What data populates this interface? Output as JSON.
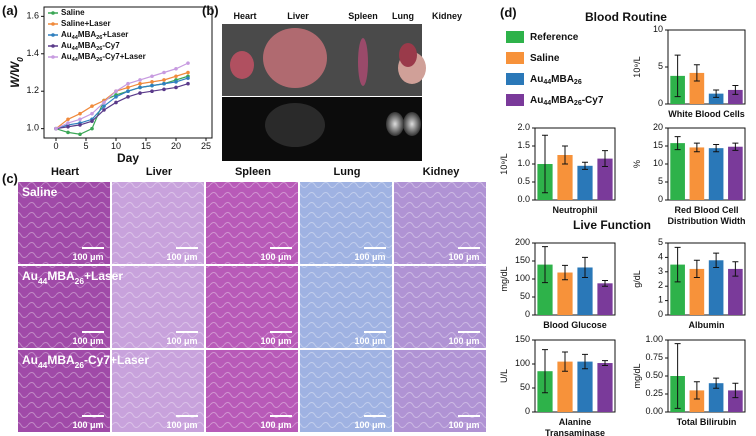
{
  "panel_labels": [
    "(a)",
    "(b)",
    "(c)",
    "(d)"
  ],
  "chart_data": [
    {
      "type": "line",
      "ylabel": "W/W0",
      "xlabel": "Day",
      "x": [
        0,
        2,
        4,
        6,
        8,
        10,
        12,
        14,
        16,
        18,
        20,
        22
      ],
      "series": [
        {
          "name": "Saline",
          "color": "#3aa655",
          "values": [
            1.0,
            0.98,
            0.97,
            1.0,
            1.15,
            1.18,
            1.2,
            1.22,
            1.23,
            1.24,
            1.26,
            1.28
          ]
        },
        {
          "name": "Saline+Laser",
          "color": "#f08a3c",
          "values": [
            1.0,
            1.05,
            1.08,
            1.12,
            1.15,
            1.2,
            1.22,
            1.24,
            1.25,
            1.26,
            1.28,
            1.3
          ]
        },
        {
          "name": "Au44MBA26+Laser",
          "color": "#2f7fbf",
          "values": [
            1.0,
            1.02,
            1.03,
            1.05,
            1.12,
            1.17,
            1.2,
            1.22,
            1.23,
            1.24,
            1.25,
            1.27
          ]
        },
        {
          "name": "Au44MBA26-Cy7",
          "color": "#5a3a8a",
          "values": [
            1.0,
            1.01,
            1.02,
            1.04,
            1.1,
            1.14,
            1.17,
            1.19,
            1.2,
            1.21,
            1.22,
            1.24
          ]
        },
        {
          "name": "Au44MBA26-Cy7+Laser",
          "color": "#c79be0",
          "values": [
            1.0,
            1.03,
            1.05,
            1.08,
            1.14,
            1.2,
            1.24,
            1.26,
            1.28,
            1.3,
            1.32,
            1.35
          ]
        }
      ],
      "xlim": [
        -2,
        26
      ],
      "xticks": [
        0,
        5,
        10,
        15,
        20,
        25
      ],
      "ylim": [
        0.95,
        1.65
      ],
      "yticks": [
        {
          "value": 1.0,
          "label": "1.0"
        },
        {
          "value": 1.2,
          "label": "1.2"
        },
        {
          "value": 1.4,
          "label": "1.4"
        },
        {
          "value": 1.6,
          "label": "1.6"
        }
      ]
    },
    {
      "type": "bar",
      "ylabel": "10⁹/L",
      "title": [
        "White Blood Cells"
      ],
      "values": [
        3.8,
        4.2,
        1.4,
        1.9
      ],
      "errors": [
        2.8,
        1.1,
        0.5,
        0.6
      ],
      "ylim": [
        0,
        10
      ],
      "yticks": [
        0,
        5,
        10
      ]
    },
    {
      "type": "bar",
      "ylabel": "10⁹/L",
      "title": [
        "Neutrophil"
      ],
      "values": [
        1.0,
        1.25,
        0.95,
        1.15
      ],
      "errors": [
        0.8,
        0.25,
        0.1,
        0.22
      ],
      "ylim": [
        0,
        2
      ],
      "yticks": [
        {
          "value": 0,
          "label": "0.0"
        },
        {
          "value": 0.5,
          "label": "0.5"
        },
        {
          "value": 1,
          "label": "1.0"
        },
        {
          "value": 1.5,
          "label": "1.5"
        },
        {
          "value": 2,
          "label": "2.0"
        }
      ]
    },
    {
      "type": "bar",
      "ylabel": "%",
      "title": [
        "Red Blood Cell",
        "Distribution Width"
      ],
      "values": [
        15.8,
        14.6,
        14.4,
        14.8
      ],
      "errors": [
        1.8,
        1.2,
        1.0,
        1.0
      ],
      "ylim": [
        0,
        20
      ],
      "yticks": [
        0,
        5,
        10,
        15,
        20
      ]
    },
    {
      "type": "bar",
      "ylabel": "mg/dL",
      "title": [
        "Blood Glucose"
      ],
      "values": [
        140,
        118,
        132,
        88
      ],
      "errors": [
        50,
        20,
        28,
        8
      ],
      "ylim": [
        0,
        200
      ],
      "yticks": [
        0,
        50,
        100,
        150,
        200
      ]
    },
    {
      "type": "bar",
      "ylabel": "g/dL",
      "title": [
        "Albumin"
      ],
      "values": [
        3.5,
        3.2,
        3.8,
        3.2
      ],
      "errors": [
        1.2,
        0.6,
        0.5,
        0.5
      ],
      "ylim": [
        0,
        5
      ],
      "yticks": [
        0,
        1,
        2,
        3,
        4,
        5
      ]
    },
    {
      "type": "bar",
      "ylabel": "U/L",
      "title": [
        "Alanine",
        "Transaminase"
      ],
      "values": [
        85,
        105,
        105,
        102
      ],
      "errors": [
        45,
        20,
        15,
        5
      ],
      "ylim": [
        0,
        150
      ],
      "yticks": [
        0,
        50,
        100,
        150
      ]
    },
    {
      "type": "bar",
      "ylabel": "mg/dL",
      "title": [
        "Total Bilirubin"
      ],
      "values": [
        0.5,
        0.3,
        0.4,
        0.3
      ],
      "errors": [
        0.45,
        0.12,
        0.07,
        0.1
      ],
      "ylim": [
        0,
        1
      ],
      "yticks": [
        {
          "value": 0,
          "label": "0.00"
        },
        {
          "value": 0.25,
          "label": "0.25"
        },
        {
          "value": 0.5,
          "label": "0.50"
        },
        {
          "value": 0.75,
          "label": "0.75"
        },
        {
          "value": 1,
          "label": "1.00"
        }
      ]
    }
  ],
  "photos": {
    "organs": [
      "Heart",
      "Liver",
      "Spleen",
      "Lung",
      "Kidney"
    ]
  },
  "histology": {
    "columns": [
      "Heart",
      "Liver",
      "Spleen",
      "Lung",
      "Kidney"
    ],
    "rows": [
      "Saline",
      "Au44MBA26+Laser",
      "Au44MBA26-Cy7+Laser"
    ],
    "scale_bar": "100 μm"
  },
  "blood": {
    "headers": [
      "Blood Routine",
      "Live Function"
    ],
    "legend": [
      {
        "name": "Reference",
        "color": "#2eb24a"
      },
      {
        "name": "Saline",
        "color": "#f7923a"
      },
      {
        "name": "Au44MBA26",
        "color": "#2a78b8"
      },
      {
        "name": "Au44MBA26-Cy7",
        "color": "#7a3a9a"
      }
    ]
  }
}
